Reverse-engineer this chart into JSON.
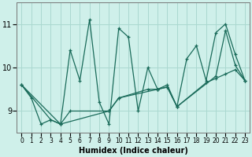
{
  "xlabel": "Humidex (Indice chaleur)",
  "bg_color": "#cff0ea",
  "grid_color": "#aad8d0",
  "line_color": "#1a6b5a",
  "xlim": [
    -0.5,
    23.5
  ],
  "ylim": [
    8.5,
    11.5
  ],
  "yticks": [
    9,
    10,
    11
  ],
  "xticks": [
    0,
    1,
    2,
    3,
    4,
    5,
    6,
    7,
    8,
    9,
    10,
    11,
    12,
    13,
    14,
    15,
    16,
    17,
    18,
    19,
    20,
    21,
    22,
    23
  ],
  "lines": [
    {
      "x": [
        0,
        1,
        2,
        3,
        4,
        5,
        6,
        7,
        8,
        9,
        10,
        11,
        12,
        13,
        14,
        15,
        16,
        17,
        18,
        19,
        20,
        21,
        22,
        23
      ],
      "y": [
        9.6,
        9.3,
        8.7,
        8.8,
        8.7,
        10.4,
        9.7,
        11.1,
        9.2,
        8.7,
        10.9,
        10.7,
        9.0,
        10.0,
        9.5,
        9.6,
        9.1,
        10.2,
        10.5,
        9.7,
        10.8,
        11.0,
        10.3,
        9.7
      ]
    },
    {
      "x": [
        0,
        3,
        4,
        5,
        9,
        10,
        13,
        14,
        15,
        16,
        19,
        20,
        21,
        22,
        23
      ],
      "y": [
        9.6,
        8.8,
        8.7,
        9.0,
        9.0,
        9.3,
        9.5,
        9.5,
        9.55,
        9.1,
        9.65,
        9.75,
        9.85,
        9.95,
        9.7
      ]
    },
    {
      "x": [
        0,
        4,
        9,
        10,
        14,
        15,
        16,
        20,
        21,
        22,
        23
      ],
      "y": [
        9.6,
        8.7,
        9.0,
        9.3,
        9.5,
        9.55,
        9.1,
        9.8,
        10.85,
        10.05,
        9.7
      ]
    }
  ]
}
